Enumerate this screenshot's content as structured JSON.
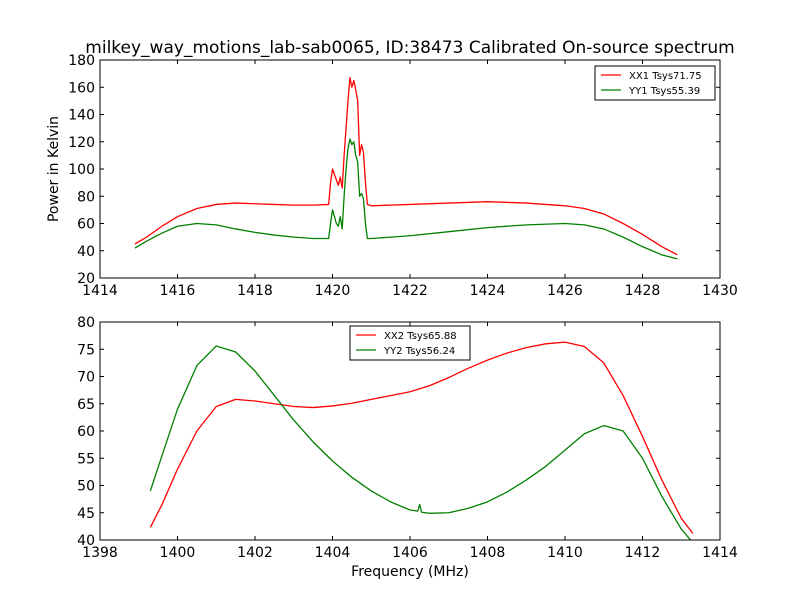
{
  "figure": {
    "title": "milkey_way_motions_lab-sab0065, ID:38473 Calibrated On-source spectrum",
    "xlabel": "Frequency (MHz)"
  },
  "chart_data": [
    {
      "type": "line",
      "ylabel": "Power in Kelvin",
      "xlabel": "",
      "xlim": [
        1414,
        1430
      ],
      "ylim": [
        20,
        180
      ],
      "xticks": [
        1414,
        1416,
        1418,
        1420,
        1422,
        1424,
        1426,
        1428,
        1430
      ],
      "yticks": [
        20,
        40,
        60,
        80,
        100,
        120,
        140,
        160,
        180
      ],
      "grid": false,
      "legend_position": "top-right",
      "series": [
        {
          "name": "XX1 Tsys71.75",
          "color": "#ff0000",
          "x": [
            1414.9,
            1415.2,
            1415.6,
            1416.0,
            1416.5,
            1417.0,
            1417.5,
            1418.0,
            1418.5,
            1419.0,
            1419.5,
            1419.9,
            1419.95,
            1420.0,
            1420.1,
            1420.15,
            1420.2,
            1420.25,
            1420.3,
            1420.35,
            1420.4,
            1420.45,
            1420.5,
            1420.55,
            1420.6,
            1420.65,
            1420.7,
            1420.75,
            1420.8,
            1420.85,
            1420.9,
            1421.0,
            1421.5,
            1422.0,
            1423.0,
            1424.0,
            1425.0,
            1426.0,
            1426.5,
            1427.0,
            1427.5,
            1428.0,
            1428.5,
            1428.9
          ],
          "values": [
            45,
            50,
            58,
            65,
            71,
            74,
            75,
            74.5,
            74,
            73.5,
            73.5,
            74,
            90,
            100,
            92,
            88,
            94,
            86,
            110,
            130,
            150,
            167,
            160,
            165,
            158,
            150,
            110,
            118,
            112,
            90,
            74,
            73,
            73.5,
            74,
            75,
            76,
            75,
            73,
            71,
            67,
            60,
            52,
            43,
            37
          ]
        },
        {
          "name": "YY1 Tsys55.39",
          "color": "#008000",
          "x": [
            1414.9,
            1415.2,
            1415.6,
            1416.0,
            1416.5,
            1417.0,
            1417.5,
            1418.0,
            1418.5,
            1419.0,
            1419.5,
            1419.9,
            1419.95,
            1420.0,
            1420.1,
            1420.15,
            1420.2,
            1420.25,
            1420.3,
            1420.35,
            1420.4,
            1420.45,
            1420.5,
            1420.55,
            1420.6,
            1420.65,
            1420.7,
            1420.75,
            1420.8,
            1420.85,
            1420.9,
            1421.0,
            1421.5,
            1422.0,
            1423.0,
            1424.0,
            1425.0,
            1426.0,
            1426.5,
            1427.0,
            1427.5,
            1428.0,
            1428.5,
            1428.9
          ],
          "values": [
            42,
            47,
            53,
            58,
            60,
            59,
            56,
            53.5,
            51.5,
            50,
            49,
            49,
            60,
            70,
            60,
            58,
            65,
            56,
            80,
            100,
            115,
            122,
            118,
            120,
            110,
            105,
            80,
            82,
            78,
            60,
            49,
            49,
            50,
            51,
            54,
            57,
            59,
            60,
            59,
            56,
            50,
            43,
            37,
            34
          ]
        }
      ]
    },
    {
      "type": "line",
      "ylabel": "",
      "xlabel": "Frequency (MHz)",
      "xlim": [
        1398,
        1414
      ],
      "ylim": [
        40,
        80
      ],
      "xticks": [
        1398,
        1400,
        1402,
        1404,
        1406,
        1408,
        1410,
        1412,
        1414
      ],
      "yticks": [
        40,
        45,
        50,
        55,
        60,
        65,
        70,
        75,
        80
      ],
      "grid": false,
      "legend_position": "top-center",
      "series": [
        {
          "name": "XX2 Tsys65.88",
          "color": "#ff0000",
          "x": [
            1399.3,
            1399.6,
            1400.0,
            1400.5,
            1401.0,
            1401.5,
            1402.0,
            1402.5,
            1403.0,
            1403.5,
            1404.0,
            1404.5,
            1405.0,
            1405.5,
            1406.0,
            1406.5,
            1407.0,
            1407.5,
            1408.0,
            1408.5,
            1409.0,
            1409.5,
            1410.0,
            1410.5,
            1411.0,
            1411.5,
            1412.0,
            1412.5,
            1413.0,
            1413.3
          ],
          "values": [
            42.3,
            46.5,
            53,
            60,
            64.5,
            65.8,
            65.5,
            65,
            64.5,
            64.3,
            64.6,
            65.1,
            65.8,
            66.5,
            67.2,
            68.3,
            69.8,
            71.5,
            73,
            74.3,
            75.3,
            76,
            76.3,
            75.5,
            72.5,
            66.5,
            59,
            51,
            44,
            41.2
          ]
        },
        {
          "name": "YY2 Tsys56.24",
          "color": "#008000",
          "x": [
            1399.3,
            1399.6,
            1400.0,
            1400.5,
            1401.0,
            1401.5,
            1402.0,
            1402.5,
            1403.0,
            1403.5,
            1404.0,
            1404.5,
            1405.0,
            1405.5,
            1406.0,
            1406.2,
            1406.25,
            1406.3,
            1406.5,
            1407.0,
            1407.5,
            1408.0,
            1408.5,
            1409.0,
            1409.5,
            1410.0,
            1410.5,
            1411.0,
            1411.5,
            1412.0,
            1412.5,
            1413.0,
            1413.3
          ],
          "values": [
            49,
            55.5,
            64,
            72,
            75.6,
            74.5,
            71,
            66.5,
            62,
            58,
            54.5,
            51.5,
            49,
            47,
            45.5,
            45.3,
            46.5,
            45.1,
            44.9,
            45,
            45.8,
            47,
            48.8,
            51,
            53.5,
            56.5,
            59.5,
            61,
            60,
            55,
            48,
            42,
            39.5
          ]
        }
      ]
    }
  ]
}
